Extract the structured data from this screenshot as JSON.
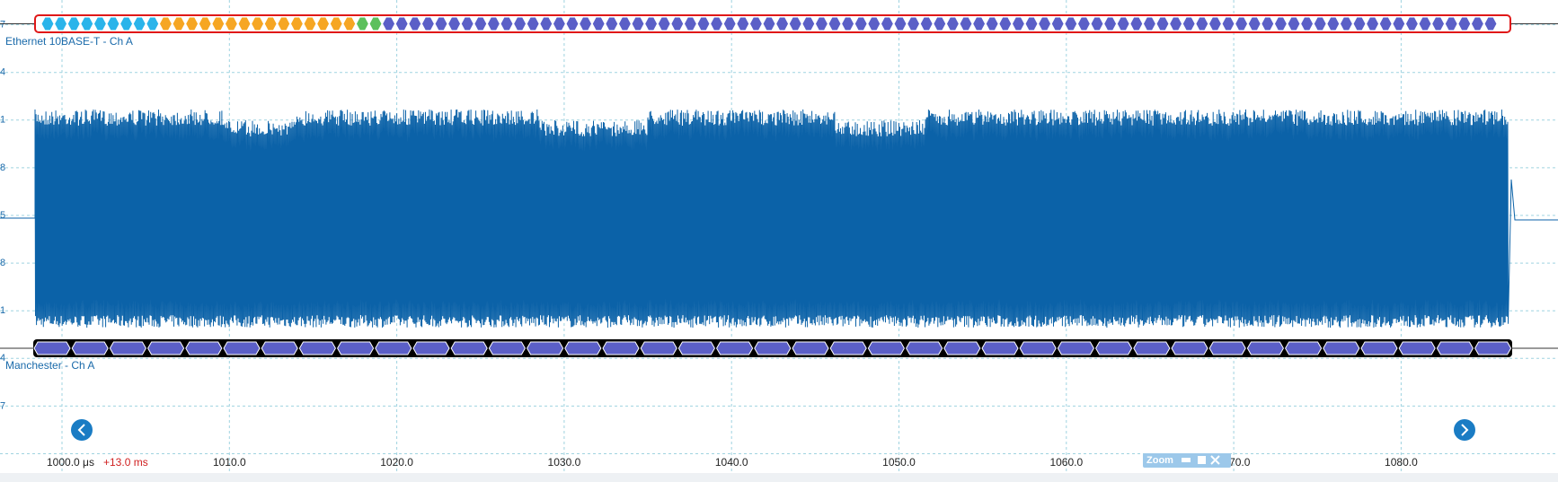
{
  "channels": [
    {
      "label": "Ethernet 10BASE-T - Ch A"
    },
    {
      "label": "Manchester - Ch A"
    }
  ],
  "y_axis_labels": [
    "7",
    "4",
    "1",
    "8",
    "5",
    "8",
    "1",
    "4",
    "7"
  ],
  "x_axis": {
    "start": "1000.0 μs",
    "offset": "+13.0 ms",
    "labels": [
      "1010.0",
      "1020.0",
      "1030.0",
      "1040.0",
      "1050.0",
      "1060.0",
      "1070.0",
      "1080.0"
    ]
  },
  "zoom": {
    "label": "Zoom"
  }
}
